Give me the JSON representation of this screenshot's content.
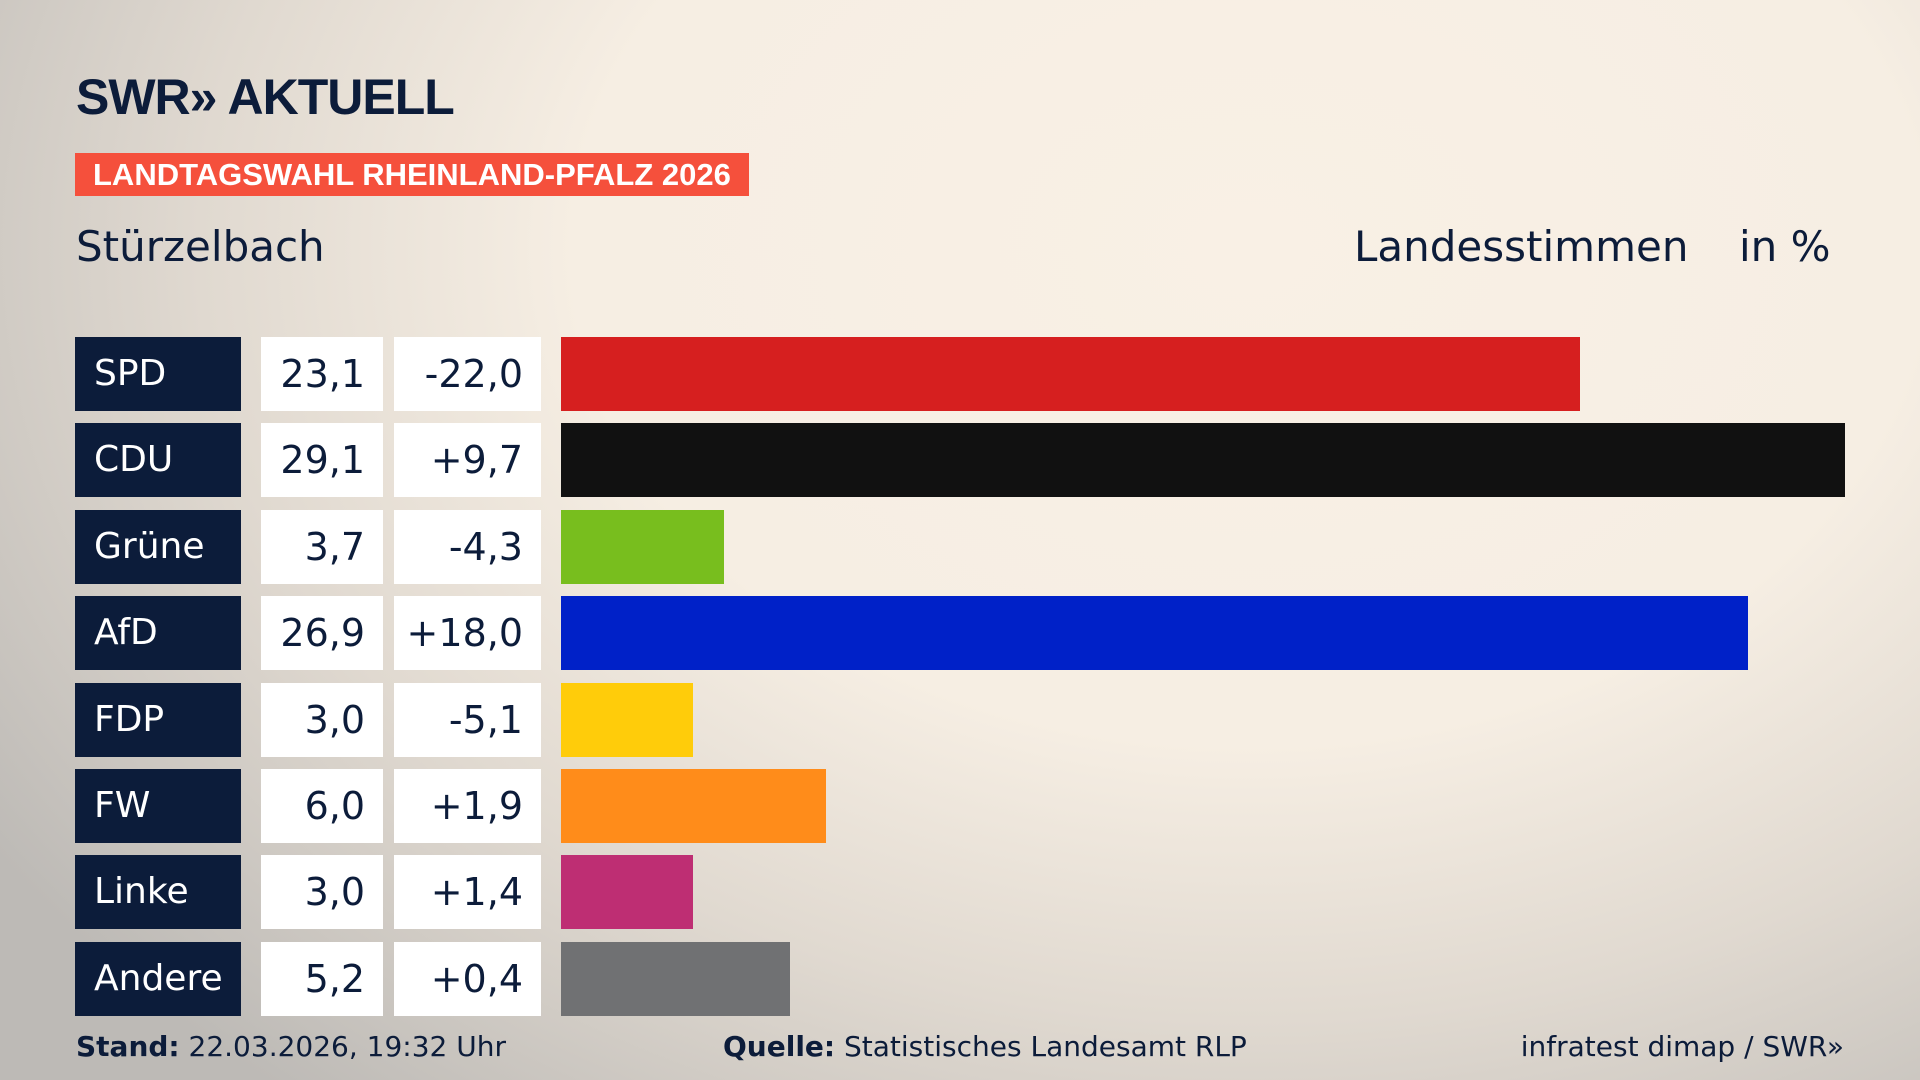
{
  "header": {
    "logo": "SWR» AKTUELL",
    "banner": "LANDTAGSWAHL RHEINLAND-PFALZ 2026",
    "place": "Stürzelbach",
    "measure": "Landesstimmen",
    "unit": "in %"
  },
  "chart_data": {
    "type": "bar",
    "orientation": "horizontal",
    "categories": [
      "SPD",
      "CDU",
      "Grüne",
      "AfD",
      "FDP",
      "FW",
      "Linke",
      "Andere"
    ],
    "values": [
      23.1,
      29.1,
      3.7,
      26.9,
      3.0,
      6.0,
      3.0,
      5.2
    ],
    "value_labels": [
      "23,1",
      "29,1",
      "3,7",
      "26,9",
      "3,0",
      "6,0",
      "3,0",
      "5,2"
    ],
    "diff_labels": [
      "-22,0",
      "+9,7",
      "-4,3",
      "+18,0",
      "-5,1",
      "+1,9",
      "+1,4",
      "+0,4"
    ],
    "colors": [
      "#d61f1f",
      "#111111",
      "#78be1e",
      "#0021c8",
      "#ffcc0a",
      "#ff8c1a",
      "#be2e73",
      "#707173"
    ],
    "grid": false
  },
  "footer": {
    "stand_label": "Stand:",
    "stand": "22.03.2026, 19:32 Uhr",
    "source_label": "Quelle:",
    "source": "Statistisches Landesamt RLP",
    "credit": "infratest dimap / SWR»"
  }
}
